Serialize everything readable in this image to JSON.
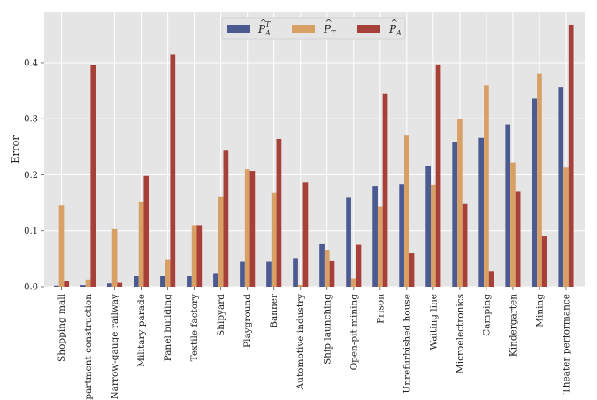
{
  "chart_data": {
    "type": "bar",
    "ylabel": "Error",
    "xlabel": "",
    "ylim": [
      0,
      0.49
    ],
    "yticks": [
      0.0,
      0.1,
      0.2,
      0.3,
      0.4
    ],
    "ytick_labels": [
      "0.0",
      "0.1",
      "0.2",
      "0.3",
      "0.4"
    ],
    "grid": true,
    "legend_position": "top-center",
    "categories": [
      "Shopping mall",
      "Apartment construction",
      "Narrow-gauge railway",
      "Military parade",
      "Panel building",
      "Textile factory",
      "Shipyard",
      "Playground",
      "Banner",
      "Automotive industry",
      "Ship launching",
      "Open-pit mining",
      "Prison",
      "Unrefurbished house",
      "Waiting line",
      "Microelectronics",
      "Camping",
      "Kindergarten",
      "Mining",
      "Theater performance"
    ],
    "series": [
      {
        "name": "P̂_A^T",
        "color": "#4c5a92",
        "values": [
          0.002,
          0.003,
          0.006,
          0.019,
          0.019,
          0.019,
          0.023,
          0.045,
          0.045,
          0.05,
          0.076,
          0.159,
          0.18,
          0.183,
          0.215,
          0.259,
          0.266,
          0.29,
          0.336,
          0.357
        ]
      },
      {
        "name": "P̂_T",
        "color": "#d9a066",
        "values": [
          0.145,
          0.013,
          0.103,
          0.152,
          0.048,
          0.11,
          0.16,
          0.21,
          0.168,
          0.003,
          0.066,
          0.015,
          0.143,
          0.27,
          0.182,
          0.3,
          0.36,
          0.222,
          0.38,
          0.213
        ]
      },
      {
        "name": "P̂_A",
        "color": "#a8403a",
        "values": [
          0.01,
          0.396,
          0.007,
          0.198,
          0.415,
          0.11,
          0.243,
          0.207,
          0.264,
          0.186,
          0.046,
          0.075,
          0.345,
          0.06,
          0.397,
          0.149,
          0.028,
          0.17,
          0.09,
          0.468
        ]
      }
    ]
  }
}
